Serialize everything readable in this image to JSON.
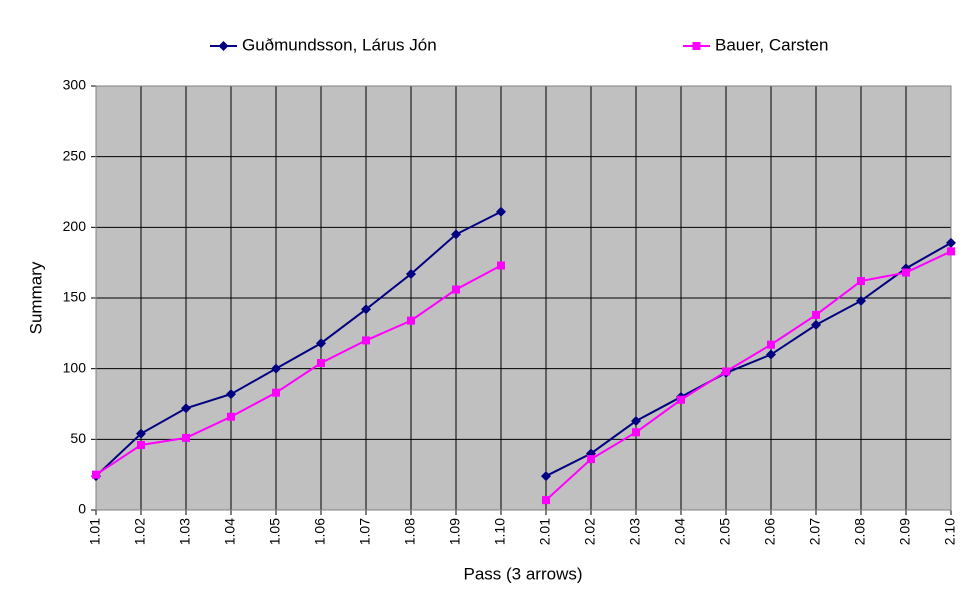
{
  "chart_data": {
    "type": "line",
    "x_label": "Pass (3 arrows)",
    "y_label": "Summary",
    "categories": [
      "1.01",
      "1.02",
      "1.03",
      "1.04",
      "1.05",
      "1.06",
      "1.07",
      "1.08",
      "1.09",
      "1.10",
      "2.01",
      "2.02",
      "2.03",
      "2.04",
      "2.05",
      "2.06",
      "2.07",
      "2.08",
      "2.09",
      "2.10"
    ],
    "series": [
      {
        "name": "Guðmundsson, Lárus Jón",
        "color": "#000080",
        "marker": "diamond",
        "values": [
          24,
          54,
          72,
          82,
          100,
          118,
          142,
          167,
          195,
          211,
          24,
          40,
          63,
          80,
          97,
          110,
          131,
          148,
          171,
          189
        ]
      },
      {
        "name": "Bauer, Carsten",
        "color": "#ff00ff",
        "marker": "square",
        "values": [
          25,
          46,
          51,
          66,
          83,
          104,
          120,
          134,
          156,
          173,
          7,
          36,
          55,
          78,
          98,
          117,
          138,
          162,
          168,
          183
        ]
      }
    ],
    "ylim": [
      0,
      300
    ],
    "yticks": [
      0,
      50,
      100,
      150,
      200,
      250,
      300
    ],
    "grid": true,
    "legend": "top"
  }
}
